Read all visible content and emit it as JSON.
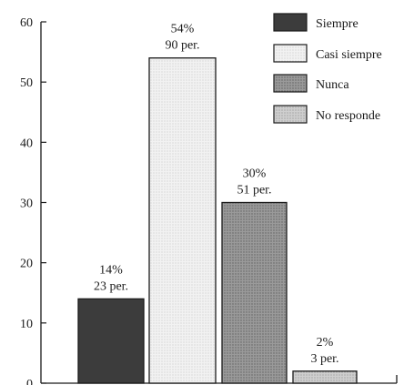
{
  "chart_data": {
    "type": "bar",
    "title": "",
    "xlabel": "",
    "ylabel": "",
    "ylim": [
      0,
      60
    ],
    "yticks": [
      "0",
      "10",
      "20",
      "30",
      "40",
      "50",
      "60"
    ],
    "grid": false,
    "legend_position": "top-right",
    "categories": [
      "Siempre",
      "Casi siempre",
      "Nunca",
      "No responde"
    ],
    "values": [
      14,
      54,
      30,
      2
    ],
    "percent_labels": [
      "14%",
      "54%",
      "30%",
      "2%"
    ],
    "count_labels": [
      "23 per.",
      "90 per.",
      "51 per.",
      "3 per."
    ],
    "colors": [
      "#3a3a3a",
      "#eeeeee",
      "#8a8a8a",
      "#c4c4c4"
    ],
    "patterns": [
      "solid-dark",
      "light-dotted",
      "dark-dotted",
      "medium-dotted"
    ]
  }
}
